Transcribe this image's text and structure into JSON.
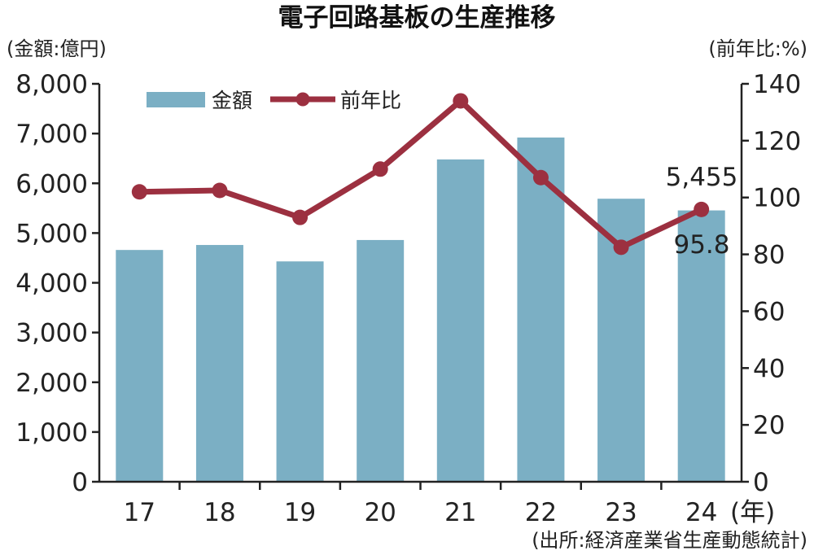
{
  "chart_data": {
    "type": "bar",
    "title": "電子回路基板の生産推移",
    "categories": [
      "17",
      "18",
      "19",
      "20",
      "21",
      "22",
      "23",
      "24"
    ],
    "x_unit": "(年)",
    "series": [
      {
        "name": "金額",
        "kind": "bar",
        "axis": "left",
        "values": [
          4660,
          4760,
          4430,
          4860,
          6480,
          6920,
          5690,
          5455
        ],
        "color": "#7bafc4"
      },
      {
        "name": "前年比",
        "kind": "line",
        "axis": "right",
        "values": [
          102,
          102.5,
          93,
          110,
          134,
          107,
          82.5,
          95.8
        ],
        "color": "#9c3040"
      }
    ],
    "left_axis": {
      "unit": "(金額:億円)",
      "min": 0,
      "max": 8000,
      "step": 1000,
      "ticks": [
        "0",
        "1,000",
        "2,000",
        "3,000",
        "4,000",
        "5,000",
        "6,000",
        "7,000",
        "8,000"
      ]
    },
    "right_axis": {
      "unit": "(前年比:%)",
      "min": 0,
      "max": 140,
      "step": 20,
      "ticks": [
        "0",
        "20",
        "40",
        "60",
        "80",
        "100",
        "120",
        "140"
      ]
    },
    "annotations": {
      "last_bar_label": "5,455",
      "last_point_label": "95.8"
    },
    "legend": {
      "placement": "top-left",
      "entries": [
        "金額",
        "前年比"
      ]
    },
    "source": "(出所:経済産業省生産動態統計)",
    "grid": false
  }
}
